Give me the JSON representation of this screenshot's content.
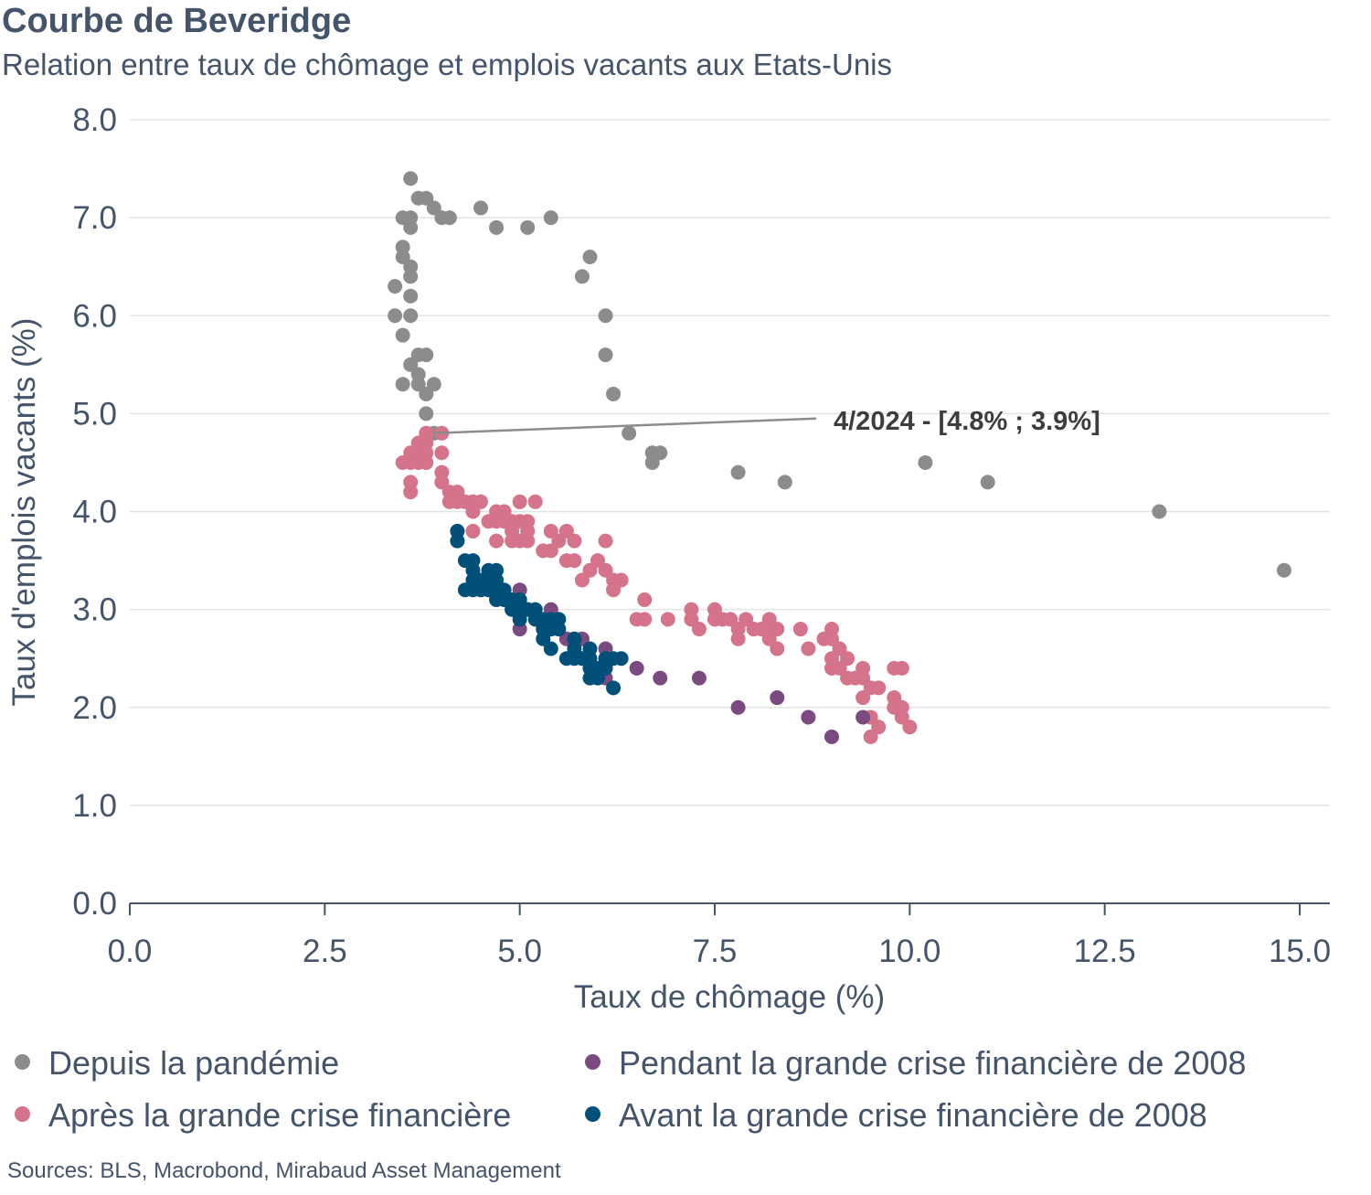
{
  "title": "Courbe de Beveridge",
  "subtitle": "Relation entre taux de chômage et emplois vacants aux Etats-Unis",
  "source": "Sources: BLS, Macrobond, Mirabaud Asset Management",
  "chart_data": {
    "type": "scatter",
    "title": "Courbe de Beveridge",
    "subtitle": "Relation entre taux de chômage et emplois vacants aux Etats-Unis",
    "xlabel": "Taux de chômage (%)",
    "ylabel": "Taux d'emplois vacants (%)",
    "xlim": [
      0,
      15
    ],
    "ylim": [
      0,
      8
    ],
    "xticks": [
      "0.0",
      "2.5",
      "5.0",
      "7.5",
      "10.0",
      "12.5",
      "15.0"
    ],
    "yticks": [
      "0.0",
      "1.0",
      "2.0",
      "3.0",
      "4.0",
      "5.0",
      "6.0",
      "7.0",
      "8.0"
    ],
    "grid": "horizontal",
    "legend_position": "bottom",
    "annotation": {
      "text": "4/2024  - [4.8% ; 3.9%]",
      "x": 3.9,
      "y": 4.8,
      "label_x": 8.8,
      "label_y": 4.95
    },
    "series": [
      {
        "name": "Depuis la pandémie",
        "color": "#8c8c8c",
        "points": [
          [
            14.8,
            3.4
          ],
          [
            13.2,
            4.0
          ],
          [
            11.0,
            4.3
          ],
          [
            10.2,
            4.5
          ],
          [
            8.4,
            4.3
          ],
          [
            7.8,
            4.4
          ],
          [
            6.8,
            4.6
          ],
          [
            6.7,
            4.6
          ],
          [
            6.7,
            4.5
          ],
          [
            6.4,
            4.8
          ],
          [
            6.2,
            5.2
          ],
          [
            6.1,
            5.6
          ],
          [
            6.1,
            6.0
          ],
          [
            5.9,
            6.6
          ],
          [
            5.8,
            6.4
          ],
          [
            5.4,
            7.0
          ],
          [
            5.1,
            6.9
          ],
          [
            4.7,
            6.9
          ],
          [
            4.5,
            7.1
          ],
          [
            4.1,
            7.0
          ],
          [
            4.0,
            7.0
          ],
          [
            3.9,
            7.1
          ],
          [
            3.8,
            7.2
          ],
          [
            3.7,
            7.2
          ],
          [
            3.6,
            7.4
          ],
          [
            3.6,
            7.0
          ],
          [
            3.5,
            7.0
          ],
          [
            3.6,
            6.9
          ],
          [
            3.5,
            6.7
          ],
          [
            3.5,
            6.6
          ],
          [
            3.6,
            6.5
          ],
          [
            3.6,
            6.4
          ],
          [
            3.4,
            6.3
          ],
          [
            3.6,
            6.2
          ],
          [
            3.4,
            6.0
          ],
          [
            3.6,
            6.0
          ],
          [
            3.5,
            5.8
          ],
          [
            3.7,
            5.6
          ],
          [
            3.8,
            5.6
          ],
          [
            3.6,
            5.5
          ],
          [
            3.7,
            5.4
          ],
          [
            3.7,
            5.3
          ],
          [
            3.5,
            5.3
          ],
          [
            3.9,
            5.3
          ],
          [
            3.8,
            5.2
          ],
          [
            3.8,
            5.0
          ],
          [
            3.9,
            4.8
          ]
        ]
      },
      {
        "name": "Après la grande crise financière",
        "color": "#d4738a",
        "points": [
          [
            3.8,
            4.8
          ],
          [
            4.0,
            4.8
          ],
          [
            3.7,
            4.7
          ],
          [
            3.8,
            4.7
          ],
          [
            3.7,
            4.6
          ],
          [
            3.6,
            4.6
          ],
          [
            3.8,
            4.6
          ],
          [
            3.5,
            4.5
          ],
          [
            3.7,
            4.5
          ],
          [
            3.8,
            4.5
          ],
          [
            3.6,
            4.5
          ],
          [
            4.0,
            4.6
          ],
          [
            3.6,
            4.3
          ],
          [
            3.6,
            4.2
          ],
          [
            4.0,
            4.4
          ],
          [
            4.0,
            4.3
          ],
          [
            4.1,
            4.2
          ],
          [
            4.1,
            4.1
          ],
          [
            4.2,
            4.2
          ],
          [
            4.3,
            4.1
          ],
          [
            4.2,
            4.1
          ],
          [
            4.4,
            4.1
          ],
          [
            4.5,
            4.1
          ],
          [
            4.4,
            4.0
          ],
          [
            4.4,
            3.8
          ],
          [
            4.7,
            4.0
          ],
          [
            4.8,
            4.0
          ],
          [
            4.6,
            3.9
          ],
          [
            4.7,
            3.9
          ],
          [
            4.8,
            3.9
          ],
          [
            4.9,
            3.9
          ],
          [
            5.0,
            3.9
          ],
          [
            5.1,
            3.9
          ],
          [
            5.0,
            4.1
          ],
          [
            5.2,
            4.1
          ],
          [
            4.9,
            3.8
          ],
          [
            5.1,
            3.8
          ],
          [
            4.7,
            3.7
          ],
          [
            4.9,
            3.7
          ],
          [
            5.0,
            3.7
          ],
          [
            5.1,
            3.7
          ],
          [
            5.4,
            3.8
          ],
          [
            5.6,
            3.8
          ],
          [
            5.5,
            3.7
          ],
          [
            5.7,
            3.7
          ],
          [
            6.1,
            3.7
          ],
          [
            5.3,
            3.6
          ],
          [
            5.4,
            3.6
          ],
          [
            5.6,
            3.5
          ],
          [
            5.7,
            3.5
          ],
          [
            6.0,
            3.5
          ],
          [
            6.1,
            3.4
          ],
          [
            5.9,
            3.4
          ],
          [
            5.8,
            3.3
          ],
          [
            6.2,
            3.3
          ],
          [
            6.3,
            3.3
          ],
          [
            6.2,
            3.2
          ],
          [
            6.6,
            3.1
          ],
          [
            6.5,
            2.9
          ],
          [
            6.6,
            2.9
          ],
          [
            6.9,
            2.9
          ],
          [
            7.2,
            3.0
          ],
          [
            7.2,
            2.9
          ],
          [
            7.3,
            2.8
          ],
          [
            7.5,
            3.0
          ],
          [
            7.6,
            2.9
          ],
          [
            7.5,
            2.9
          ],
          [
            7.7,
            2.9
          ],
          [
            7.8,
            2.8
          ],
          [
            7.9,
            2.9
          ],
          [
            7.8,
            2.7
          ],
          [
            8.0,
            2.8
          ],
          [
            8.1,
            2.8
          ],
          [
            8.2,
            2.9
          ],
          [
            8.2,
            2.8
          ],
          [
            8.2,
            2.7
          ],
          [
            8.3,
            2.8
          ],
          [
            8.3,
            2.6
          ],
          [
            8.6,
            2.8
          ],
          [
            8.7,
            2.6
          ],
          [
            8.9,
            2.7
          ],
          [
            9.0,
            2.8
          ],
          [
            9.0,
            2.7
          ],
          [
            9.1,
            2.6
          ],
          [
            9.0,
            2.5
          ],
          [
            9.0,
            2.4
          ],
          [
            9.1,
            2.4
          ],
          [
            9.2,
            2.5
          ],
          [
            9.2,
            2.3
          ],
          [
            9.3,
            2.3
          ],
          [
            9.4,
            2.4
          ],
          [
            9.4,
            2.3
          ],
          [
            9.5,
            2.2
          ],
          [
            9.4,
            2.1
          ],
          [
            9.6,
            2.2
          ],
          [
            9.8,
            2.4
          ],
          [
            9.9,
            2.4
          ],
          [
            9.8,
            2.1
          ],
          [
            9.8,
            2.0
          ],
          [
            9.9,
            2.0
          ],
          [
            9.9,
            1.9
          ],
          [
            10.0,
            1.8
          ],
          [
            9.6,
            1.8
          ],
          [
            9.5,
            1.9
          ],
          [
            9.5,
            1.7
          ]
        ]
      },
      {
        "name": "Pendant la grande crise financière de 2008",
        "color": "#7b4a80",
        "points": [
          [
            5.0,
            3.2
          ],
          [
            5.4,
            3.0
          ],
          [
            5.1,
            3.0
          ],
          [
            4.9,
            3.0
          ],
          [
            5.0,
            2.8
          ],
          [
            5.8,
            2.7
          ],
          [
            5.6,
            2.7
          ],
          [
            6.1,
            2.6
          ],
          [
            6.5,
            2.4
          ],
          [
            6.1,
            2.3
          ],
          [
            6.8,
            2.3
          ],
          [
            7.3,
            2.3
          ],
          [
            7.8,
            2.0
          ],
          [
            8.3,
            2.1
          ],
          [
            8.7,
            1.9
          ],
          [
            9.4,
            1.9
          ],
          [
            9.0,
            1.7
          ]
        ]
      },
      {
        "name": "Avant la grande crise financière de 2008",
        "color": "#00507a",
        "points": [
          [
            4.2,
            3.8
          ],
          [
            4.2,
            3.7
          ],
          [
            4.3,
            3.5
          ],
          [
            4.4,
            3.5
          ],
          [
            4.4,
            3.4
          ],
          [
            4.4,
            3.3
          ],
          [
            4.5,
            3.3
          ],
          [
            4.6,
            3.4
          ],
          [
            4.7,
            3.4
          ],
          [
            4.5,
            3.2
          ],
          [
            4.3,
            3.2
          ],
          [
            4.4,
            3.2
          ],
          [
            4.6,
            3.2
          ],
          [
            4.7,
            3.2
          ],
          [
            4.6,
            3.3
          ],
          [
            4.7,
            3.3
          ],
          [
            4.8,
            3.2
          ],
          [
            4.7,
            3.1
          ],
          [
            4.8,
            3.1
          ],
          [
            4.9,
            3.1
          ],
          [
            5.0,
            3.1
          ],
          [
            5.0,
            3.0
          ],
          [
            4.9,
            3.0
          ],
          [
            5.1,
            3.0
          ],
          [
            5.2,
            3.0
          ],
          [
            5.0,
            2.9
          ],
          [
            5.2,
            2.9
          ],
          [
            5.3,
            2.9
          ],
          [
            5.4,
            2.9
          ],
          [
            5.5,
            2.9
          ],
          [
            5.3,
            2.8
          ],
          [
            5.4,
            2.8
          ],
          [
            5.5,
            2.8
          ],
          [
            5.3,
            2.7
          ],
          [
            5.4,
            2.6
          ],
          [
            5.6,
            2.5
          ],
          [
            5.7,
            2.5
          ],
          [
            5.7,
            2.6
          ],
          [
            5.7,
            2.7
          ],
          [
            5.8,
            2.5
          ],
          [
            5.9,
            2.5
          ],
          [
            5.9,
            2.6
          ],
          [
            5.9,
            2.4
          ],
          [
            6.0,
            2.4
          ],
          [
            6.1,
            2.5
          ],
          [
            6.2,
            2.5
          ],
          [
            5.9,
            2.3
          ],
          [
            6.0,
            2.3
          ],
          [
            6.3,
            2.5
          ],
          [
            6.2,
            2.2
          ],
          [
            6.1,
            2.4
          ]
        ]
      }
    ]
  }
}
